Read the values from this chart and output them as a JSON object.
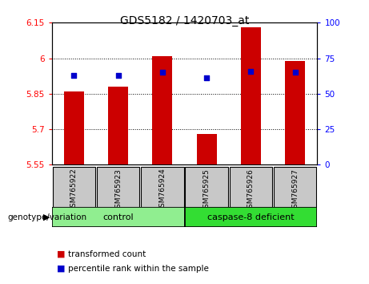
{
  "title": "GDS5182 / 1420703_at",
  "samples": [
    "GSM765922",
    "GSM765923",
    "GSM765924",
    "GSM765925",
    "GSM765926",
    "GSM765927"
  ],
  "transformed_counts": [
    5.86,
    5.88,
    6.01,
    5.68,
    6.13,
    5.99
  ],
  "percentile_ranks": [
    63,
    63,
    65,
    61,
    66,
    65
  ],
  "ylim_left": [
    5.55,
    6.15
  ],
  "ylim_right": [
    0,
    100
  ],
  "yticks_left": [
    5.55,
    5.7,
    5.85,
    6.0,
    6.15
  ],
  "yticks_right": [
    0,
    25,
    50,
    75,
    100
  ],
  "ytick_labels_left": [
    "5.55",
    "5.7",
    "5.85",
    "6",
    "6.15"
  ],
  "ytick_labels_right": [
    "0",
    "25",
    "50",
    "75",
    "100"
  ],
  "bar_color": "#CC0000",
  "dot_color": "#0000CC",
  "bar_width": 0.45,
  "genotype_label": "genotype/variation",
  "legend_red": "transformed count",
  "legend_blue": "percentile rank within the sample",
  "group_control_label": "control",
  "group_casp_label": "caspase-8 deficient",
  "bg_xtick": "#C8C8C8",
  "bg_group_control": "#90EE90",
  "bg_group_casp": "#33DD33"
}
